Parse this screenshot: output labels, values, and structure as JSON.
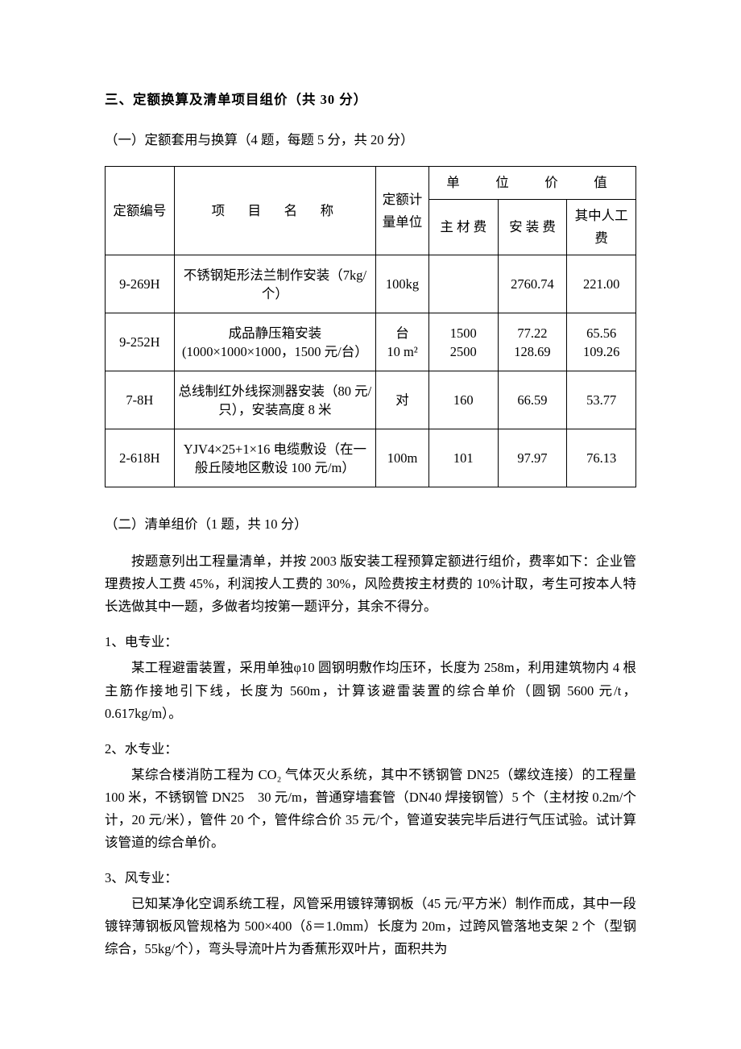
{
  "section3": {
    "title": "三、定额换算及清单项目组价（共 30 分）",
    "part1": {
      "title": "（一）定额套用与换算（4 题，每题 5 分，共 20 分）",
      "headers": {
        "code": "定额编号",
        "name": "项　目　名　称",
        "unit": "定额计量单位",
        "value_group": "单　位　价　值",
        "material": "主 材 费",
        "install": "安 装 费",
        "labor": "其中人工费"
      },
      "rows": [
        {
          "code": "9-269H",
          "name": "不锈钢矩形法兰制作安装（7kg/个）",
          "unit": "100kg",
          "material": "",
          "install": "2760.74",
          "labor": "221.00"
        },
        {
          "code": "9-252H",
          "name": "成品静压箱安装(1000×1000×1000，1500 元/台）",
          "unit": "台\n10 m²",
          "material": "1500\n2500",
          "install": "77.22\n128.69",
          "labor": "65.56\n109.26"
        },
        {
          "code": "7-8H",
          "name": "总线制红外线探测器安装（80 元/只），安装高度 8 米",
          "unit": "对",
          "material": "160",
          "install": "66.59",
          "labor": "53.77"
        },
        {
          "code": "2-618H",
          "name": "YJV4×25+1×16 电缆敷设（在一般丘陵地区敷设 100 元/m）",
          "unit": "100m",
          "material": "101",
          "install": "97.97",
          "labor": "76.13"
        }
      ]
    },
    "part2": {
      "title": "（二）清单组价（1 题，共 10 分）",
      "intro": "按题意列出工程量清单，并按 2003 版安装工程预算定额进行组价，费率如下：企业管理费按人工费 45%，利润按人工费的 30%，风险费按主材费的 10%计取，考生可按本人特长选做其中一题，多做者均按第一题评分，其余不得分。",
      "topics": [
        {
          "label": "1、电专业：",
          "text": "某工程避雷装置，采用单独φ10 圆钢明敷作均压环，长度为 258m，利用建筑物内 4 根主筋作接地引下线，长度为 560m，计算该避雷装置的综合单价（圆钢 5600 元/t，0.617kg/m）。"
        },
        {
          "label": "2、水专业：",
          "text": "某综合楼消防工程为 CO₂ 气体灭火系统，其中不锈钢管 DN25（螺纹连接）的工程量 100 米，不锈钢管 DN25　30 元/m，普通穿墙套管（DN40 焊接钢管）5 个（主材按 0.2m/个计，20 元/米），管件 20 个，管件综合价 35 元/个，管道安装完毕后进行气压试验。试计算该管道的综合单价。"
        },
        {
          "label": "3、风专业：",
          "text": "已知某净化空调系统工程，风管采用镀锌薄钢板（45 元/平方米）制作而成，其中一段镀锌薄钢板风管规格为 500×400（δ＝1.0mm）长度为 20m，过跨风管落地支架 2 个（型钢综合，55kg/个），弯头导流叶片为香蕉形双叶片，面积共为"
        }
      ]
    }
  }
}
